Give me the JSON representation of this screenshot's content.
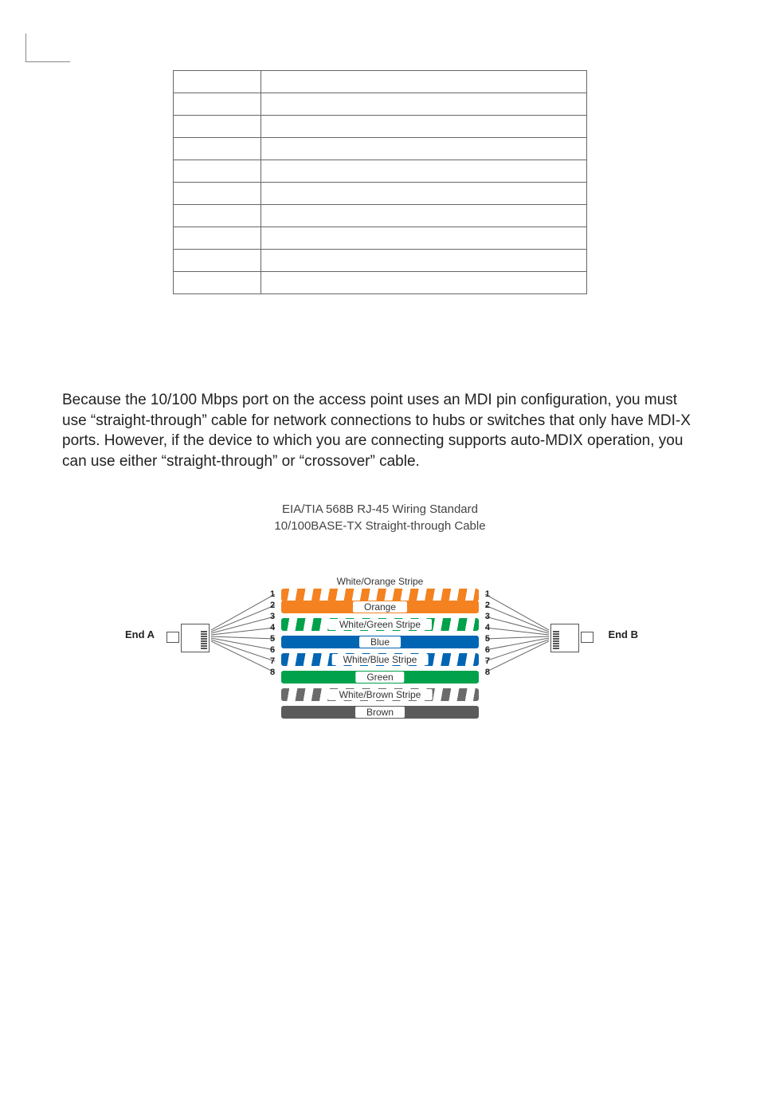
{
  "table": {
    "headers": [
      "",
      ""
    ],
    "rows": [
      [
        "",
        ""
      ],
      [
        "",
        ""
      ],
      [
        "",
        ""
      ],
      [
        "",
        ""
      ],
      [
        "",
        ""
      ],
      [
        "",
        ""
      ],
      [
        "",
        ""
      ],
      [
        "",
        ""
      ],
      [
        "",
        ""
      ]
    ]
  },
  "body_paragraph": "Because the 10/100 Mbps port on the access point uses an MDI pin configuration, you must use “straight-through” cable for network connections to hubs or switches that only have MDI-X ports. However, if the device to which you are connecting supports auto-MDIX operation, you can use either “straight-through” or “crossover” cable.",
  "diagram": {
    "title_line1": "EIA/TIA 568B RJ-45 Wiring Standard",
    "title_line2": "10/100BASE-TX Straight-through Cable",
    "end_a_label": "End A",
    "end_b_label": "End B",
    "pin_numbers": [
      "1",
      "2",
      "3",
      "4",
      "5",
      "6",
      "7",
      "8"
    ],
    "wires": [
      {
        "label": "White/Orange Stripe",
        "color": "#f58220",
        "pattern": "stripe"
      },
      {
        "label": "Orange",
        "color": "#f58220",
        "pattern": "solid"
      },
      {
        "label": "White/Green Stripe",
        "color": "#00a14b",
        "pattern": "stripe"
      },
      {
        "label": "Blue",
        "color": "#0066b3",
        "pattern": "solid"
      },
      {
        "label": "White/Blue Stripe",
        "color": "#0066b3",
        "pattern": "stripe"
      },
      {
        "label": "Green",
        "color": "#00a14b",
        "pattern": "solid"
      },
      {
        "label": "White/Brown Stripe",
        "color": "#6b6b6b",
        "pattern": "stripe"
      },
      {
        "label": "Brown",
        "color": "#5b5b5b",
        "pattern": "solid"
      }
    ],
    "fan_line_color": "#666666"
  }
}
